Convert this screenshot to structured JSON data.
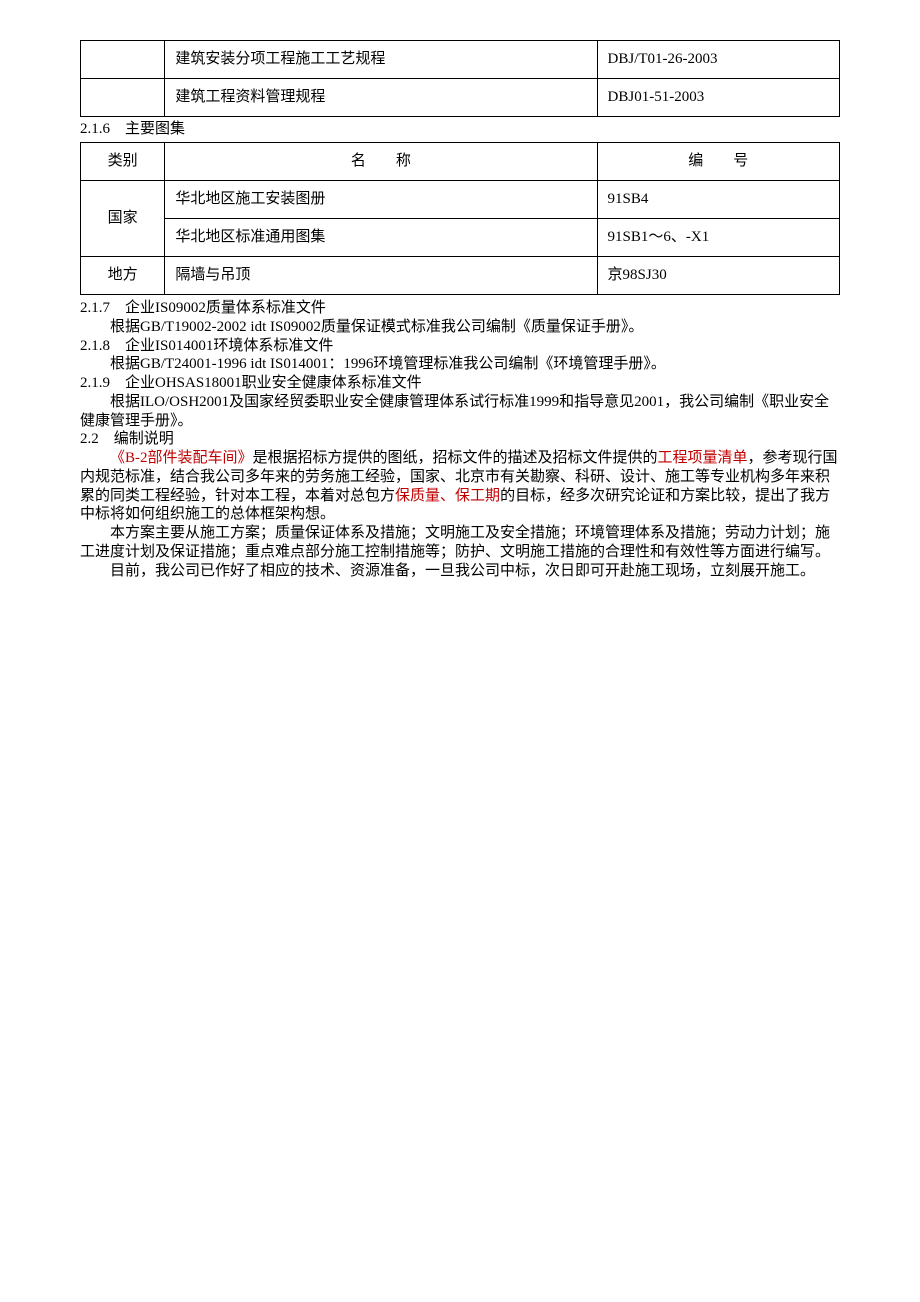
{
  "table1": {
    "rows": [
      {
        "name": "建筑安装分项工程施工工艺规程",
        "code": "DBJ/T01-26-2003"
      },
      {
        "name": "建筑工程资料管理规程",
        "code": "DBJ01-51-2003"
      }
    ]
  },
  "section216": "2.1.6　主要图集",
  "table2": {
    "headers": {
      "category": "类别",
      "name": "名　　称",
      "code": "编　　号"
    },
    "rows": [
      {
        "category": "国家",
        "name": "华北地区施工安装图册",
        "code": "91SB4"
      },
      {
        "category": "",
        "name": "华北地区标准通用图集",
        "code": "91SB1～6、-X1"
      },
      {
        "category": "地方",
        "name": "隔墙与吊顶",
        "code": "京98SJ30"
      }
    ]
  },
  "sections": {
    "s217": "2.1.7　企业IS09002质量体系标准文件",
    "s217_body": "根据GB/T19002-2002 idt IS09002质量保证模式标准我公司编制《质量保证手册》。",
    "s218": "2.1.8　企业IS014001环境体系标准文件",
    "s218_body": "根据GB/T24001-1996 idt IS014001：1996环境管理标准我公司编制《环境管理手册》。",
    "s219": "2.1.9　企业OHSAS18001职业安全健康体系标准文件",
    "s219_body": "根据ILO/OSH2001及国家经贸委职业安全健康管理体系试行标准1999和指导意见2001，我公司编制《职业安全健康管理手册》。",
    "s22": "2.2　编制说明"
  },
  "paragraphs": {
    "p1_red1": "《B-2部件装配车间》",
    "p1_a": "是根据招标方提供的图纸，招标文件的描述及招标文件提供的",
    "p1_red2": "工程项量清单",
    "p1_b": "，参考现行国内规范标准，结合我公司多年来的劳务施工经验，国家、北京市有关勘察、科研、设计、施工等专业机构多年来积累的同类工程经验，针对本工程，本着对总包方",
    "p1_red3": "保质量",
    "p1_sep": "、",
    "p1_red4": "保工期",
    "p1_c": "的目标，经多次研究论证和方案比较，提出了我方中标将如何组织施工的总体框架构想。",
    "p2": "本方案主要从施工方案；质量保证体系及措施；文明施工及安全措施；环境管理体系及措施；劳动力计划；施工进度计划及保证措施；重点难点部分施工控制措施等；防护、文明施工措施的合理性和有效性等方面进行编写。",
    "p3": "目前，我公司已作好了相应的技术、资源准备，一旦我公司中标，次日即可开赴施工现场，立刻展开施工。"
  }
}
